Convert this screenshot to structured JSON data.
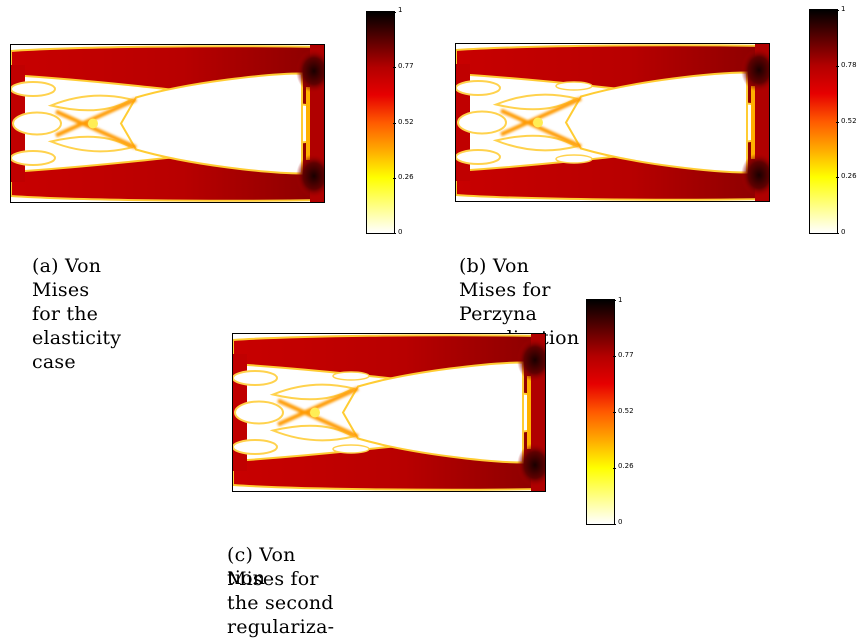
{
  "figures": [
    {
      "id": "a",
      "caption": "(a) Von Mises for the elasticity case",
      "colorbar_ticks": [
        "1",
        "0.77",
        "0.52",
        "0.26",
        "0"
      ],
      "variant": "elastic"
    },
    {
      "id": "b",
      "caption": "(b) Von Mises for Perzyna penalization",
      "colorbar_ticks": [
        "1",
        "0.78",
        "0.52",
        "0.26",
        "0"
      ],
      "variant": "perzyna"
    },
    {
      "id": "c",
      "caption_line1": "(c) Von Mises for the second regulariza-",
      "caption_line2": "tion",
      "colorbar_ticks": [
        "1",
        "0.77",
        "0.52",
        "0.26",
        "0"
      ],
      "variant": "second"
    }
  ],
  "colormap": [
    "#000000",
    "#5a0000",
    "#b30000",
    "#e60000",
    "#ff5a00",
    "#ffaa00",
    "#ffff00",
    "#ffff80",
    "#ffffff"
  ]
}
